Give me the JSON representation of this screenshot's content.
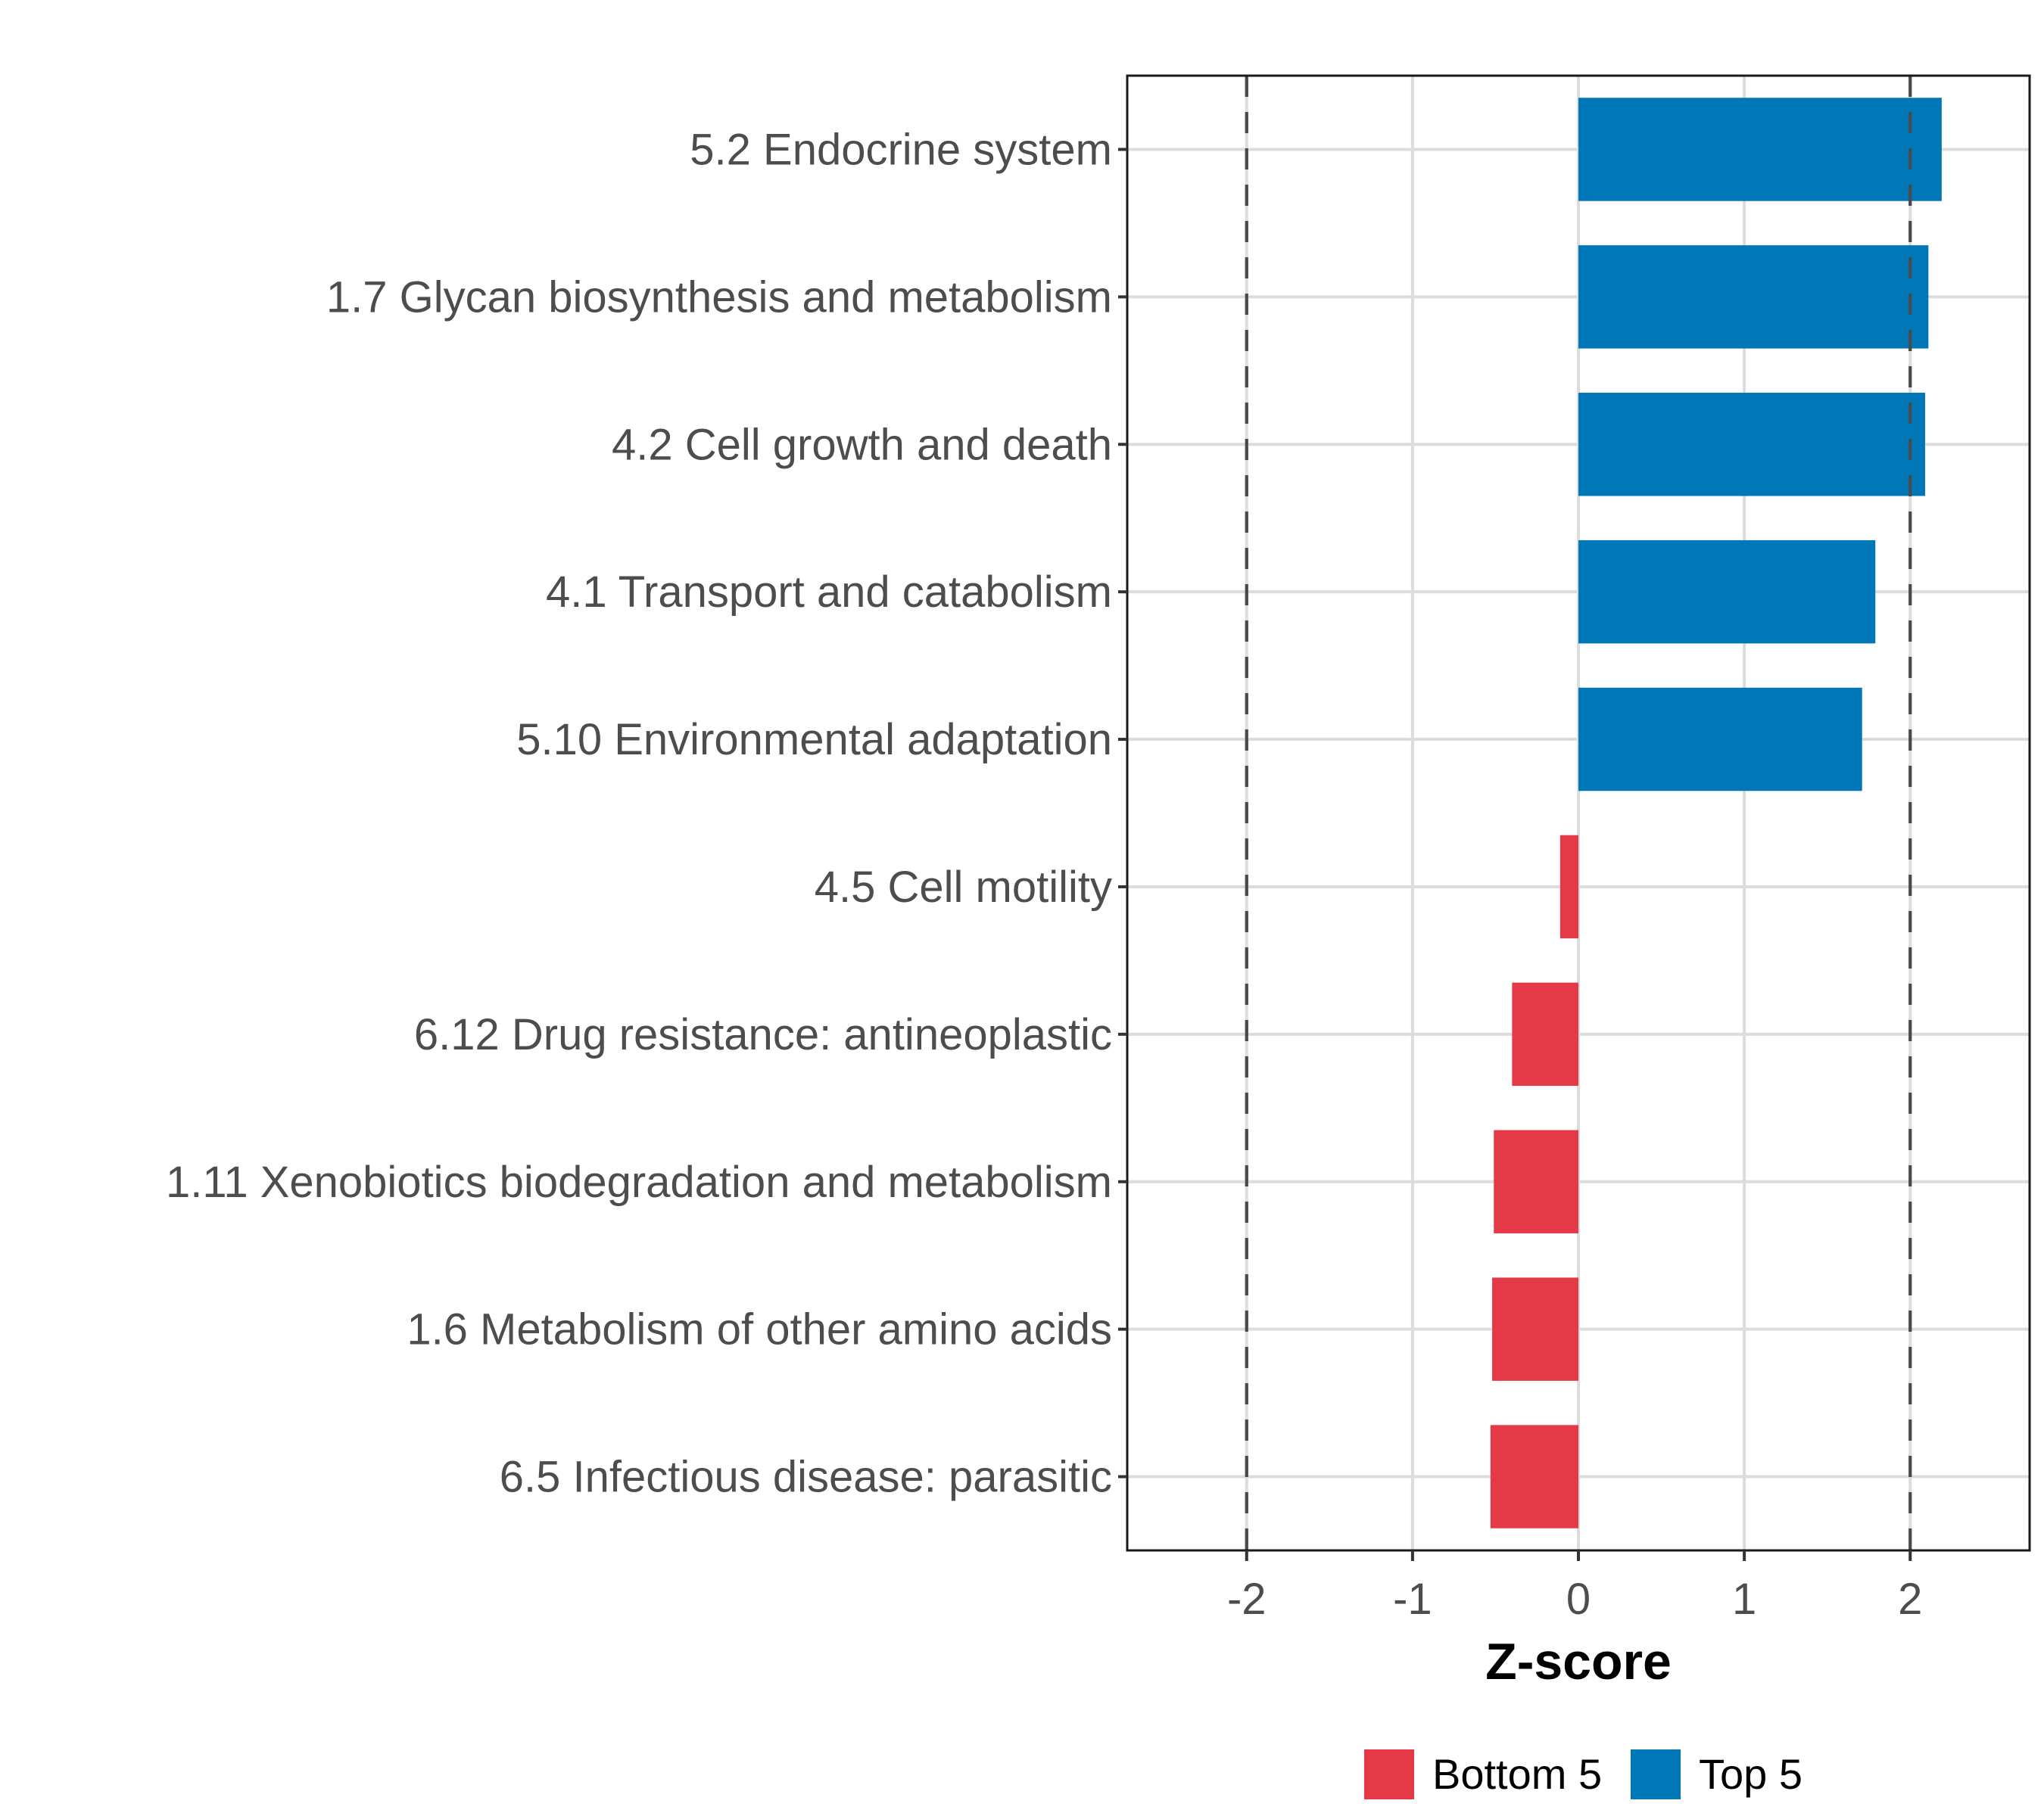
{
  "chart_data": {
    "type": "bar",
    "orientation": "horizontal",
    "title": "",
    "xlabel": "Z-score",
    "ylabel": "",
    "xlim": [
      -2.72,
      2.72
    ],
    "xticks": [
      -2,
      -1,
      0,
      1,
      2
    ],
    "xtick_labels": [
      "-2",
      "-1",
      "0",
      "1",
      "2"
    ],
    "reference_lines": [
      -2,
      2
    ],
    "grid": true,
    "legend_position": "bottom",
    "categories": [
      "5.2 Endocrine system",
      "1.7 Glycan biosynthesis and metabolism",
      "4.2 Cell growth and death",
      "4.1 Transport and catabolism",
      "5.10 Environmental adaptation",
      "4.5 Cell motility",
      "6.12 Drug resistance: antineoplastic",
      "1.11 Xenobiotics biodegradation and metabolism",
      "1.6 Metabolism of other amino acids",
      "6.5 Infectious disease: parasitic"
    ],
    "values": [
      2.19,
      2.11,
      2.09,
      1.79,
      1.71,
      -0.11,
      -0.4,
      -0.51,
      -0.52,
      -0.53
    ],
    "groups": [
      "Top 5",
      "Top 5",
      "Top 5",
      "Top 5",
      "Top 5",
      "Bottom 5",
      "Bottom 5",
      "Bottom 5",
      "Bottom 5",
      "Bottom 5"
    ],
    "legend": [
      {
        "name": "Bottom 5",
        "color": "#E63947"
      },
      {
        "name": "Top 5",
        "color": "#0077B6"
      }
    ]
  }
}
